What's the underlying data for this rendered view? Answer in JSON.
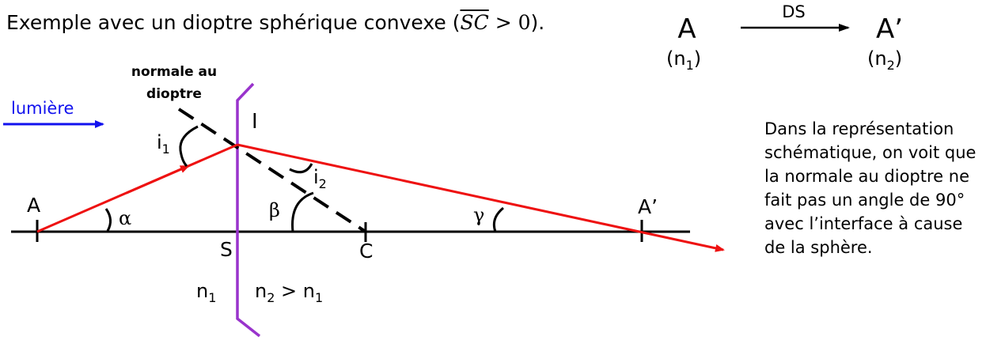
{
  "title": {
    "prefix": "Exemple avec un dioptre sphérique convexe (",
    "overline": "SC",
    "op": " > 0",
    "suffix": ")."
  },
  "mapping": {
    "object": "A",
    "object_index": "(n",
    "object_index_sub": "1",
    "object_index_close": ")",
    "arrow_label": "DS",
    "image": "A’",
    "image_index": "(n",
    "image_index_sub": "2",
    "image_index_close": ")"
  },
  "diagram": {
    "normal_label_line1": "normale au",
    "normal_label_line2": "dioptre",
    "light_label": "lumière",
    "point_I": "I",
    "i1": "i",
    "i1_sub": "1",
    "i2": "i",
    "i2_sub": "2",
    "point_A": "A",
    "alpha": "α",
    "beta": "β",
    "gamma": "γ",
    "point_A_prime": "A’",
    "point_S": "S",
    "point_C": "C",
    "n1": "n",
    "n1_sub": "1",
    "n2": "n",
    "n2_sub": "2",
    "n2_rel": " > n",
    "n2_rel_sub": "1"
  },
  "description": "Dans la représentation\nschématique, on voit que\nla normale au dioptre ne\nfait pas un angle de 90°\navec l’interface à cause\nde la sphère.",
  "colors": {
    "ray": "#ee1111",
    "interface": "#9933cc",
    "light": "#1111ee",
    "axis": "#000000"
  }
}
